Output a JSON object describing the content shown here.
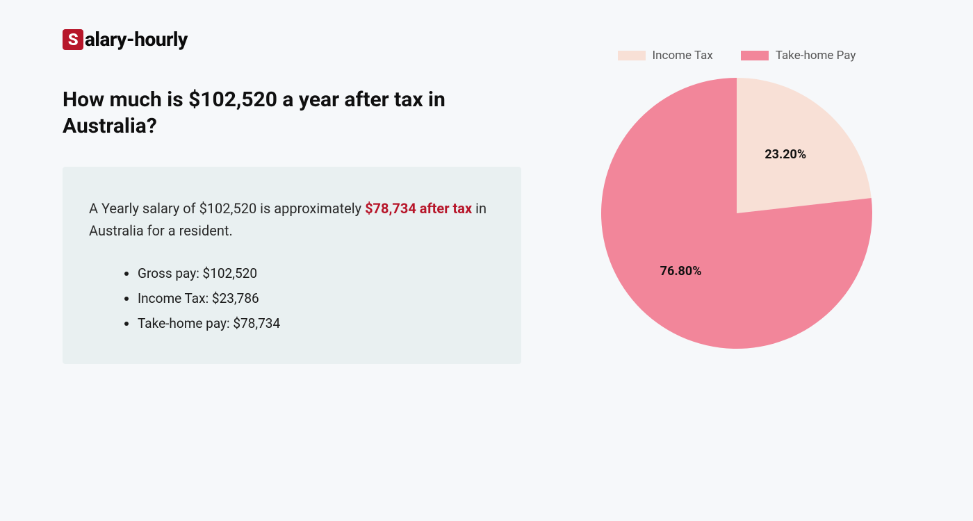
{
  "logo": {
    "badge_letter": "S",
    "rest": "alary-hourly",
    "badge_bg": "#b7162a",
    "badge_fg": "#ffffff",
    "text_color": "#0b0b0b"
  },
  "headline": "How much is $102,520 a year after tax in Australia?",
  "summary": {
    "pre": "A Yearly salary of $102,520 is approximately ",
    "highlight": "$78,734 after tax",
    "post": " in Australia for a resident.",
    "highlight_color": "#b7162a",
    "box_bg": "#e9f0f1"
  },
  "bullets": [
    "Gross pay: $102,520",
    "Income Tax: $23,786",
    "Take-home pay: $78,734"
  ],
  "chart": {
    "type": "pie",
    "background_color": "#f6f8fa",
    "radius": 195,
    "slices": [
      {
        "label": "Income Tax",
        "value": 23.2,
        "display": "23.20%",
        "color": "#f8e0d6"
      },
      {
        "label": "Take-home Pay",
        "value": 76.8,
        "display": "76.80%",
        "color": "#f2869a"
      }
    ],
    "legend_font_color": "#555555",
    "label_font_color": "#111111",
    "label_fontsize": 18,
    "start_angle_deg": -90
  },
  "page_bg": "#f6f8fa"
}
